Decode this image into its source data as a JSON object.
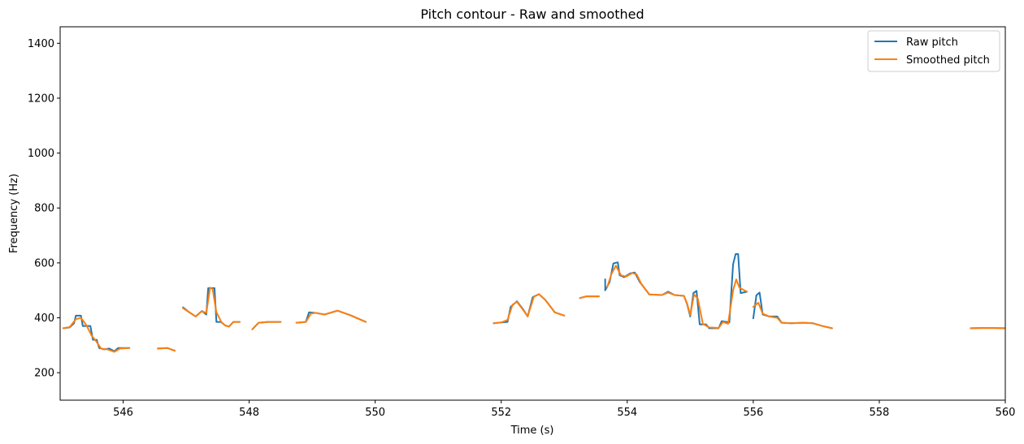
{
  "chart_data": {
    "type": "line",
    "title": "Pitch contour - Raw and smoothed",
    "xlabel": "Time (s)",
    "ylabel": "Frequency (Hz)",
    "xlim": [
      545.0,
      560.0
    ],
    "ylim": [
      100,
      1460
    ],
    "xticks": [
      546,
      548,
      550,
      552,
      554,
      556,
      558,
      560
    ],
    "yticks": [
      200,
      400,
      600,
      800,
      1000,
      1200,
      1400
    ],
    "grid": false,
    "legend_position": "top-right",
    "series": [
      {
        "name": "Raw pitch",
        "color": "#1f77b4",
        "segments": [
          [
            [
              545.05,
              362
            ],
            [
              545.15,
              365
            ],
            [
              545.22,
              380
            ],
            [
              545.25,
              408
            ],
            [
              545.33,
              408
            ],
            [
              545.36,
              370
            ],
            [
              545.48,
              370
            ],
            [
              545.52,
              320
            ],
            [
              545.58,
              320
            ],
            [
              545.62,
              290
            ],
            [
              545.7,
              285
            ],
            [
              545.78,
              288
            ],
            [
              545.86,
              278
            ],
            [
              545.92,
              290
            ],
            [
              546.1,
              290
            ]
          ],
          [
            [
              546.55,
              288
            ],
            [
              546.7,
              290
            ],
            [
              546.82,
              280
            ]
          ],
          [
            [
              546.95,
              438
            ],
            [
              547.05,
              420
            ],
            [
              547.15,
              405
            ],
            [
              547.25,
              425
            ],
            [
              547.32,
              412
            ],
            [
              547.35,
              508
            ],
            [
              547.45,
              508
            ],
            [
              547.48,
              385
            ],
            [
              547.55,
              385
            ],
            [
              547.62,
              372
            ],
            [
              547.68,
              368
            ],
            [
              547.75,
              385
            ],
            [
              547.85,
              385
            ]
          ],
          [
            [
              548.05,
              358
            ],
            [
              548.15,
              382
            ],
            [
              548.3,
              385
            ],
            [
              548.5,
              385
            ]
          ],
          [
            [
              548.75,
              382
            ],
            [
              548.9,
              385
            ],
            [
              548.95,
              420
            ],
            [
              549.05,
              418
            ],
            [
              549.2,
              412
            ],
            [
              549.4,
              426
            ],
            [
              549.6,
              410
            ],
            [
              549.85,
              385
            ]
          ],
          [
            [
              551.88,
              380
            ],
            [
              552.0,
              383
            ],
            [
              552.1,
              385
            ],
            [
              552.15,
              440
            ],
            [
              552.25,
              460
            ],
            [
              552.35,
              430
            ],
            [
              552.42,
              405
            ],
            [
              552.5,
              475
            ],
            [
              552.6,
              486
            ],
            [
              552.7,
              465
            ],
            [
              552.85,
              420
            ],
            [
              553.0,
              408
            ]
          ],
          [
            [
              553.25,
              472
            ],
            [
              553.35,
              478
            ],
            [
              553.55,
              478
            ]
          ],
          [
            [
              553.65,
              540
            ],
            [
              553.65,
              500
            ],
            [
              553.72,
              530
            ],
            [
              553.78,
              598
            ],
            [
              553.85,
              602
            ],
            [
              553.88,
              555
            ],
            [
              553.95,
              548
            ],
            [
              554.05,
              562
            ],
            [
              554.12,
              565
            ],
            [
              554.2,
              530
            ],
            [
              554.35,
              485
            ],
            [
              554.55,
              483
            ],
            [
              554.65,
              495
            ],
            [
              554.75,
              483
            ],
            [
              554.9,
              480
            ],
            [
              554.95,
              450
            ],
            [
              555.0,
              405
            ],
            [
              555.05,
              490
            ],
            [
              555.1,
              498
            ],
            [
              555.15,
              376
            ],
            [
              555.25,
              376
            ],
            [
              555.3,
              362
            ],
            [
              555.45,
              362
            ],
            [
              555.5,
              388
            ],
            [
              555.62,
              383
            ],
            [
              555.68,
              595
            ],
            [
              555.72,
              632
            ],
            [
              555.76,
              632
            ],
            [
              555.8,
              490
            ],
            [
              555.9,
              495
            ]
          ],
          [
            [
              556.0,
              398
            ],
            [
              556.05,
              482
            ],
            [
              556.1,
              492
            ],
            [
              556.15,
              412
            ],
            [
              556.25,
              405
            ],
            [
              556.38,
              405
            ],
            [
              556.45,
              382
            ],
            [
              556.6,
              380
            ],
            [
              556.8,
              382
            ],
            [
              556.95,
              380
            ],
            [
              557.1,
              370
            ],
            [
              557.25,
              362
            ]
          ],
          [
            [
              559.45,
              362
            ],
            [
              559.7,
              363
            ],
            [
              560.0,
              362
            ]
          ]
        ]
      },
      {
        "name": "Smoothed pitch",
        "color": "#ff7f0e",
        "segments": [
          [
            [
              545.05,
              362
            ],
            [
              545.15,
              366
            ],
            [
              545.25,
              395
            ],
            [
              545.33,
              400
            ],
            [
              545.42,
              372
            ],
            [
              545.5,
              335
            ],
            [
              545.58,
              312
            ],
            [
              545.65,
              288
            ],
            [
              545.75,
              285
            ],
            [
              545.86,
              276
            ],
            [
              545.95,
              288
            ],
            [
              546.1,
              290
            ]
          ],
          [
            [
              546.55,
              288
            ],
            [
              546.7,
              290
            ],
            [
              546.82,
              280
            ]
          ],
          [
            [
              546.95,
              435
            ],
            [
              547.05,
              420
            ],
            [
              547.15,
              405
            ],
            [
              547.25,
              424
            ],
            [
              547.32,
              418
            ],
            [
              547.38,
              510
            ],
            [
              547.42,
              505
            ],
            [
              547.48,
              420
            ],
            [
              547.56,
              384
            ],
            [
              547.62,
              372
            ],
            [
              547.68,
              368
            ],
            [
              547.75,
              385
            ],
            [
              547.85,
              385
            ]
          ],
          [
            [
              548.05,
              358
            ],
            [
              548.15,
              382
            ],
            [
              548.3,
              385
            ],
            [
              548.5,
              385
            ]
          ],
          [
            [
              548.75,
              382
            ],
            [
              548.9,
              385
            ],
            [
              548.98,
              415
            ],
            [
              549.05,
              418
            ],
            [
              549.2,
              412
            ],
            [
              549.4,
              426
            ],
            [
              549.6,
              410
            ],
            [
              549.85,
              385
            ]
          ],
          [
            [
              551.88,
              380
            ],
            [
              552.0,
              383
            ],
            [
              552.1,
              392
            ],
            [
              552.18,
              448
            ],
            [
              552.25,
              458
            ],
            [
              552.35,
              428
            ],
            [
              552.42,
              405
            ],
            [
              552.52,
              478
            ],
            [
              552.6,
              486
            ],
            [
              552.7,
              465
            ],
            [
              552.85,
              420
            ],
            [
              553.0,
              408
            ]
          ],
          [
            [
              553.25,
              472
            ],
            [
              553.35,
              478
            ],
            [
              553.55,
              478
            ]
          ],
          [
            [
              553.68,
              510
            ],
            [
              553.75,
              560
            ],
            [
              553.82,
              590
            ],
            [
              553.9,
              555
            ],
            [
              553.98,
              550
            ],
            [
              554.08,
              563
            ],
            [
              554.15,
              558
            ],
            [
              554.22,
              525
            ],
            [
              554.35,
              485
            ],
            [
              554.55,
              483
            ],
            [
              554.65,
              492
            ],
            [
              554.75,
              483
            ],
            [
              554.9,
              480
            ],
            [
              554.95,
              452
            ],
            [
              555.0,
              410
            ],
            [
              555.06,
              485
            ],
            [
              555.12,
              470
            ],
            [
              555.2,
              378
            ],
            [
              555.3,
              365
            ],
            [
              555.45,
              363
            ],
            [
              555.52,
              385
            ],
            [
              555.6,
              378
            ],
            [
              555.68,
              500
            ],
            [
              555.73,
              540
            ],
            [
              555.78,
              510
            ],
            [
              555.9,
              495
            ]
          ],
          [
            [
              556.0,
              440
            ],
            [
              556.08,
              455
            ],
            [
              556.15,
              415
            ],
            [
              556.25,
              405
            ],
            [
              556.38,
              400
            ],
            [
              556.45,
              382
            ],
            [
              556.6,
              380
            ],
            [
              556.8,
              382
            ],
            [
              556.95,
              380
            ],
            [
              557.1,
              370
            ],
            [
              557.25,
              362
            ]
          ],
          [
            [
              559.45,
              362
            ],
            [
              559.7,
              363
            ],
            [
              560.0,
              362
            ]
          ]
        ]
      }
    ]
  }
}
